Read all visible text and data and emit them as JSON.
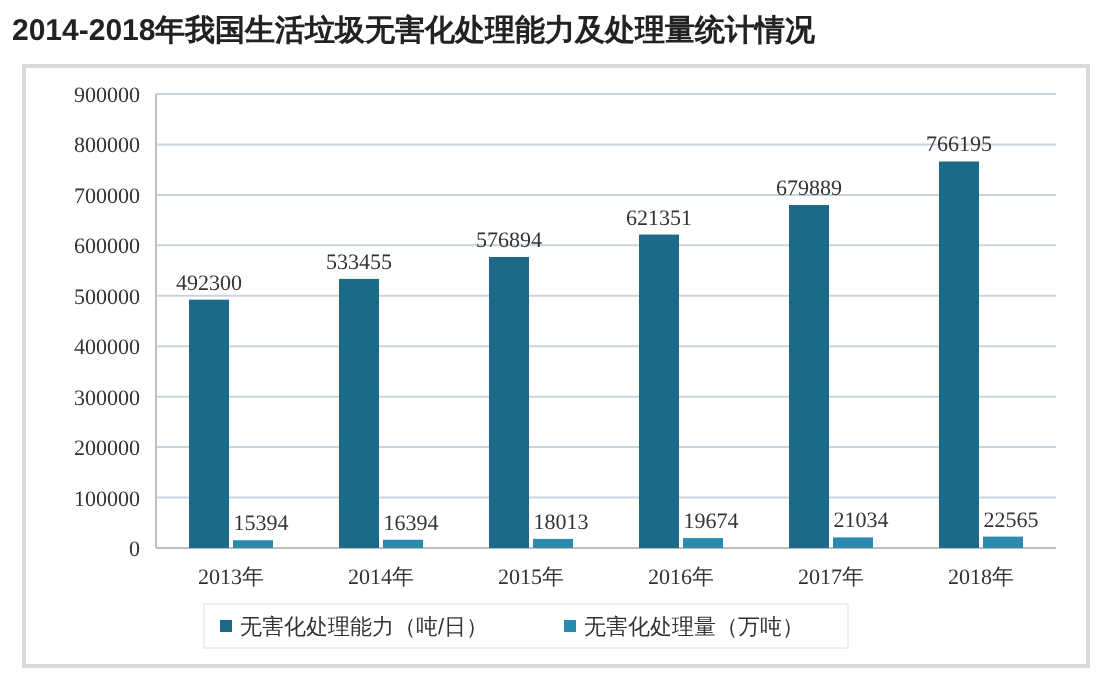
{
  "chart_data": {
    "type": "bar",
    "title": "2014-2018年我国生活垃圾无害化处理能力及处理量统计情况",
    "categories": [
      "2013年",
      "2014年",
      "2015年",
      "2016年",
      "2017年",
      "2018年"
    ],
    "series": [
      {
        "name": "无害化处理能力（吨/日）",
        "color": "#1b6a88",
        "values": [
          492300,
          533455,
          576894,
          621351,
          679889,
          766195
        ]
      },
      {
        "name": "无害化处理量（万吨）",
        "color": "#2a8ab0",
        "values": [
          15394,
          16394,
          18013,
          19674,
          21034,
          22565
        ]
      }
    ],
    "ylim": [
      0,
      900000
    ],
    "yticks": [
      0,
      100000,
      200000,
      300000,
      400000,
      500000,
      600000,
      700000,
      800000,
      900000
    ],
    "grid": "y",
    "legend": "bottom",
    "data_labels": true
  }
}
